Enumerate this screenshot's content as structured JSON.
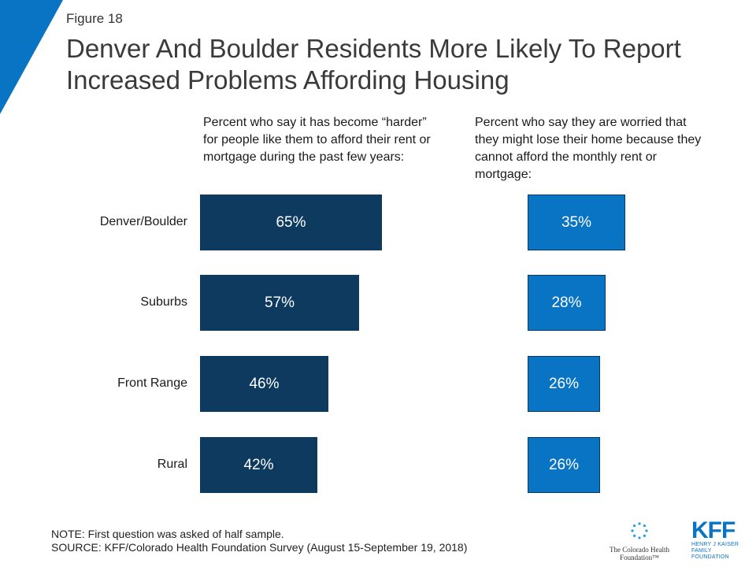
{
  "figure_label": "Figure 18",
  "title": "Denver And Boulder Residents More Likely To Report Increased Problems Affording Housing",
  "colors": {
    "series1": "#0e3a5f",
    "series2": "#0a74c4",
    "corner": "#0a74c4"
  },
  "chart_data": {
    "type": "bar",
    "orientation": "horizontal",
    "categories": [
      "Denver/Boulder",
      "Suburbs",
      "Front Range",
      "Rural"
    ],
    "series": [
      {
        "name": "Percent who say it has become “harder” for people like them to afford their rent or mortgage during the past few years:",
        "values": [
          65,
          57,
          46,
          42
        ],
        "labels": [
          "65%",
          "57%",
          "46%",
          "42%"
        ]
      },
      {
        "name": "Percent who say they are worried that they might lose their home because they cannot afford the monthly rent or mortgage:",
        "values": [
          35,
          28,
          26,
          26
        ],
        "labels": [
          "35%",
          "28%",
          "26%",
          "26%"
        ]
      }
    ],
    "xlim": [
      0,
      100
    ],
    "grid": false,
    "legend": "none"
  },
  "footnotes": {
    "note": "NOTE: First question was asked of half sample.",
    "source": "SOURCE: KFF/Colorado Health Foundation Survey (August 15-September 19, 2018)"
  },
  "logos": {
    "chf": "The Colorado Health Foundation™",
    "kff_mark": "KFF",
    "kff_line1": "HENRY J KAISER",
    "kff_line2": "FAMILY FOUNDATION"
  }
}
